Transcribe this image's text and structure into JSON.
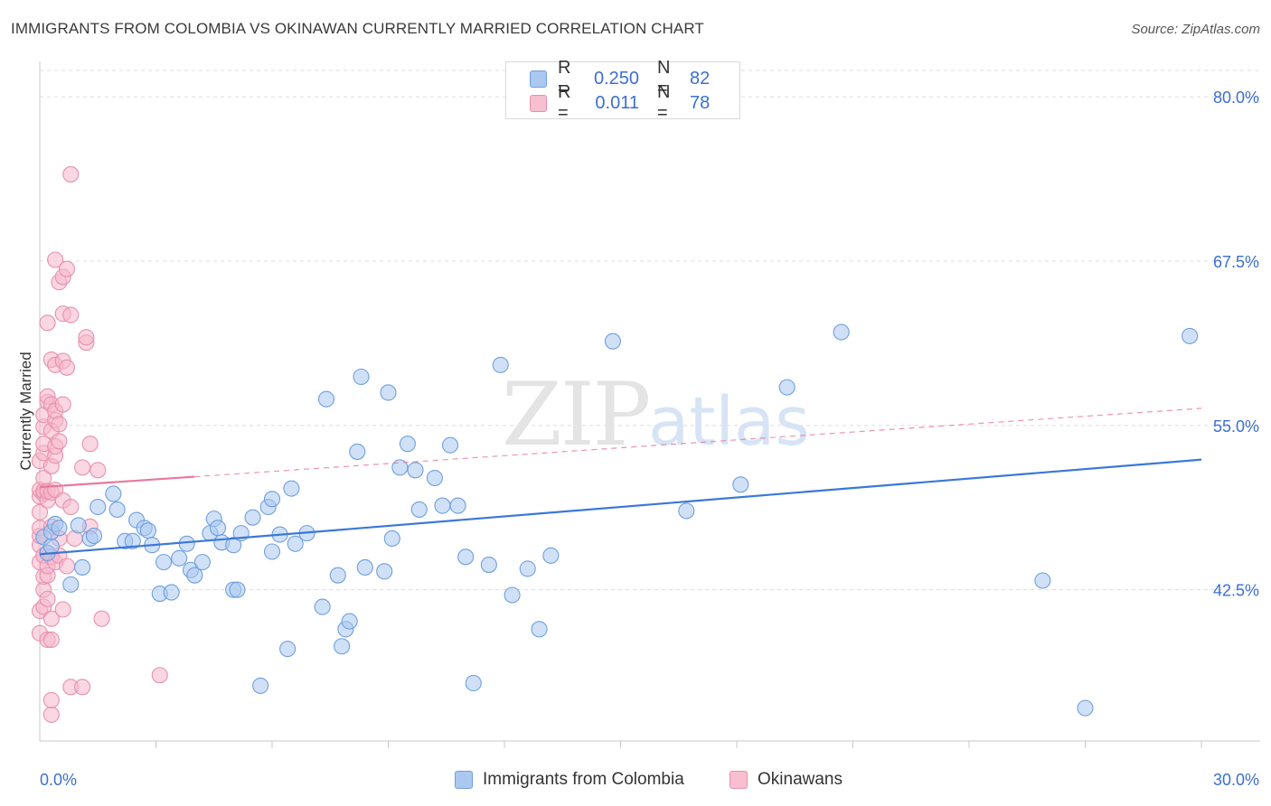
{
  "title": "IMMIGRANTS FROM COLOMBIA VS OKINAWAN CURRENTLY MARRIED CORRELATION CHART",
  "source": "Source: ZipAtlas.com",
  "watermark": {
    "zip": "ZIP",
    "atlas": "atlas"
  },
  "colors": {
    "blue": "#3b78d8",
    "blue_fill": "#aac8f0",
    "pink": "#e8789e",
    "pink_fill": "#f5b6ca",
    "axis_text": "#3b6fd1",
    "grid": "#dcdcdc"
  },
  "legend_top": [
    {
      "r_label": "R =",
      "r_value": "0.250",
      "n_label": "N =",
      "n_value": "82",
      "color": "#aac8f0",
      "border": "#6f9fdf"
    },
    {
      "r_label": "R =",
      "r_value": "0.011",
      "n_label": "N =",
      "n_value": "78",
      "color": "#f7bfd0",
      "border": "#e890ad"
    }
  ],
  "legend_bottom": [
    {
      "label": "Immigrants from Colombia",
      "color": "#aac8f0",
      "border": "#6f9fdf"
    },
    {
      "label": "Okinawans",
      "color": "#f7bfd0",
      "border": "#e890ad"
    }
  ],
  "chart_data": {
    "type": "scatter",
    "title": "IMMIGRANTS FROM COLOMBIA VS OKINAWAN CURRENTLY MARRIED CORRELATION CHART",
    "xlabel": "",
    "ylabel": "Currently Married",
    "xlim": [
      0,
      30
    ],
    "ylim": [
      31,
      82
    ],
    "x_tick_labels": [
      {
        "value": 0,
        "label": "0.0%"
      },
      {
        "value": 30,
        "label": "30.0%"
      }
    ],
    "y_ticks": [
      {
        "value": 80.0,
        "label": "80.0%"
      },
      {
        "value": 67.5,
        "label": "67.5%"
      },
      {
        "value": 55.0,
        "label": "55.0%"
      },
      {
        "value": 42.5,
        "label": "42.5%"
      }
    ],
    "x_minor_ticks": [
      3,
      6,
      9,
      12,
      15,
      18,
      21,
      24,
      27,
      30
    ],
    "series": [
      {
        "name": "Immigrants from Colombia",
        "r": 0.25,
        "n": 82,
        "trend": {
          "x": [
            0,
            30
          ],
          "y": [
            45.2,
            52.4
          ],
          "dashed_from": null
        },
        "points": [
          [
            0.1,
            46.5
          ],
          [
            0.2,
            45.3
          ],
          [
            0.3,
            45.8
          ],
          [
            0.3,
            46.9
          ],
          [
            0.4,
            47.5
          ],
          [
            0.5,
            47.2
          ],
          [
            0.8,
            42.9
          ],
          [
            1.0,
            47.4
          ],
          [
            1.1,
            44.2
          ],
          [
            1.3,
            46.4
          ],
          [
            1.4,
            46.6
          ],
          [
            1.5,
            48.8
          ],
          [
            1.9,
            49.8
          ],
          [
            2.0,
            48.6
          ],
          [
            2.2,
            46.2
          ],
          [
            2.4,
            46.2
          ],
          [
            2.5,
            47.8
          ],
          [
            2.7,
            47.2
          ],
          [
            2.8,
            47.0
          ],
          [
            2.9,
            45.9
          ],
          [
            3.1,
            42.2
          ],
          [
            3.2,
            44.6
          ],
          [
            3.4,
            42.3
          ],
          [
            3.6,
            44.9
          ],
          [
            3.8,
            46.0
          ],
          [
            3.9,
            44.0
          ],
          [
            4.0,
            43.6
          ],
          [
            4.2,
            44.6
          ],
          [
            4.4,
            46.8
          ],
          [
            4.5,
            47.9
          ],
          [
            4.6,
            47.2
          ],
          [
            4.7,
            46.1
          ],
          [
            5.0,
            45.9
          ],
          [
            5.0,
            42.5
          ],
          [
            5.1,
            42.5
          ],
          [
            5.2,
            46.8
          ],
          [
            5.5,
            48.0
          ],
          [
            5.7,
            35.2
          ],
          [
            5.9,
            48.8
          ],
          [
            6.0,
            49.4
          ],
          [
            6.0,
            45.4
          ],
          [
            6.2,
            46.7
          ],
          [
            6.4,
            38.0
          ],
          [
            6.5,
            50.2
          ],
          [
            6.6,
            46.0
          ],
          [
            6.9,
            46.8
          ],
          [
            7.3,
            41.2
          ],
          [
            7.4,
            57.0
          ],
          [
            7.7,
            43.6
          ],
          [
            7.8,
            38.2
          ],
          [
            7.9,
            39.5
          ],
          [
            8.0,
            40.1
          ],
          [
            8.2,
            53.0
          ],
          [
            8.3,
            58.7
          ],
          [
            8.4,
            44.2
          ],
          [
            8.9,
            43.9
          ],
          [
            9.0,
            57.5
          ],
          [
            9.1,
            46.4
          ],
          [
            9.3,
            51.8
          ],
          [
            9.5,
            53.6
          ],
          [
            9.7,
            51.6
          ],
          [
            9.8,
            48.6
          ],
          [
            10.2,
            51.0
          ],
          [
            10.4,
            48.9
          ],
          [
            10.6,
            53.5
          ],
          [
            10.8,
            48.9
          ],
          [
            11.0,
            45.0
          ],
          [
            11.2,
            35.4
          ],
          [
            11.6,
            44.4
          ],
          [
            11.9,
            59.6
          ],
          [
            12.2,
            42.1
          ],
          [
            12.6,
            44.1
          ],
          [
            12.9,
            39.5
          ],
          [
            13.2,
            45.1
          ],
          [
            14.8,
            61.4
          ],
          [
            16.7,
            48.5
          ],
          [
            18.1,
            50.5
          ],
          [
            19.3,
            57.9
          ],
          [
            20.7,
            62.1
          ],
          [
            25.9,
            43.2
          ],
          [
            27.0,
            33.5
          ],
          [
            29.7,
            61.8
          ]
        ]
      },
      {
        "name": "Okinawans",
        "r": 0.011,
        "n": 78,
        "trend": {
          "x": [
            0,
            30
          ],
          "y": [
            50.3,
            56.3
          ],
          "dashed_from": 4.0
        },
        "points": [
          [
            0.0,
            39.2
          ],
          [
            0.0,
            40.9
          ],
          [
            0.0,
            44.6
          ],
          [
            0.0,
            45.9
          ],
          [
            0.0,
            46.6
          ],
          [
            0.0,
            47.2
          ],
          [
            0.0,
            48.4
          ],
          [
            0.0,
            49.6
          ],
          [
            0.0,
            50.1
          ],
          [
            0.0,
            52.3
          ],
          [
            0.1,
            41.2
          ],
          [
            0.1,
            42.5
          ],
          [
            0.1,
            43.5
          ],
          [
            0.1,
            45.1
          ],
          [
            0.1,
            49.8
          ],
          [
            0.1,
            50.0
          ],
          [
            0.1,
            51.0
          ],
          [
            0.1,
            52.9
          ],
          [
            0.1,
            53.6
          ],
          [
            0.1,
            54.9
          ],
          [
            0.1,
            55.8
          ],
          [
            0.2,
            38.7
          ],
          [
            0.2,
            41.8
          ],
          [
            0.2,
            43.6
          ],
          [
            0.2,
            44.3
          ],
          [
            0.2,
            45.3
          ],
          [
            0.2,
            49.3
          ],
          [
            0.2,
            50.0
          ],
          [
            0.2,
            56.8
          ],
          [
            0.2,
            57.2
          ],
          [
            0.2,
            62.8
          ],
          [
            0.3,
            33.0
          ],
          [
            0.3,
            34.1
          ],
          [
            0.3,
            38.7
          ],
          [
            0.3,
            40.3
          ],
          [
            0.3,
            45.0
          ],
          [
            0.3,
            47.3
          ],
          [
            0.3,
            49.9
          ],
          [
            0.3,
            51.9
          ],
          [
            0.3,
            54.6
          ],
          [
            0.3,
            56.6
          ],
          [
            0.3,
            60.0
          ],
          [
            0.4,
            44.6
          ],
          [
            0.4,
            50.1
          ],
          [
            0.4,
            52.7
          ],
          [
            0.4,
            53.4
          ],
          [
            0.4,
            55.4
          ],
          [
            0.4,
            56.1
          ],
          [
            0.4,
            59.6
          ],
          [
            0.4,
            67.6
          ],
          [
            0.5,
            45.1
          ],
          [
            0.5,
            46.4
          ],
          [
            0.5,
            53.8
          ],
          [
            0.5,
            55.1
          ],
          [
            0.5,
            65.9
          ],
          [
            0.6,
            41.0
          ],
          [
            0.6,
            49.3
          ],
          [
            0.6,
            56.6
          ],
          [
            0.6,
            59.9
          ],
          [
            0.6,
            63.5
          ],
          [
            0.6,
            66.3
          ],
          [
            0.7,
            44.3
          ],
          [
            0.7,
            59.4
          ],
          [
            0.7,
            66.9
          ],
          [
            0.8,
            48.8
          ],
          [
            0.8,
            35.1
          ],
          [
            0.8,
            74.1
          ],
          [
            0.8,
            63.4
          ],
          [
            0.9,
            46.4
          ],
          [
            1.1,
            35.1
          ],
          [
            1.1,
            51.8
          ],
          [
            1.2,
            61.3
          ],
          [
            1.2,
            61.7
          ],
          [
            1.3,
            47.3
          ],
          [
            1.3,
            53.6
          ],
          [
            1.5,
            51.6
          ],
          [
            1.6,
            40.3
          ],
          [
            3.1,
            36.0
          ]
        ]
      }
    ]
  }
}
